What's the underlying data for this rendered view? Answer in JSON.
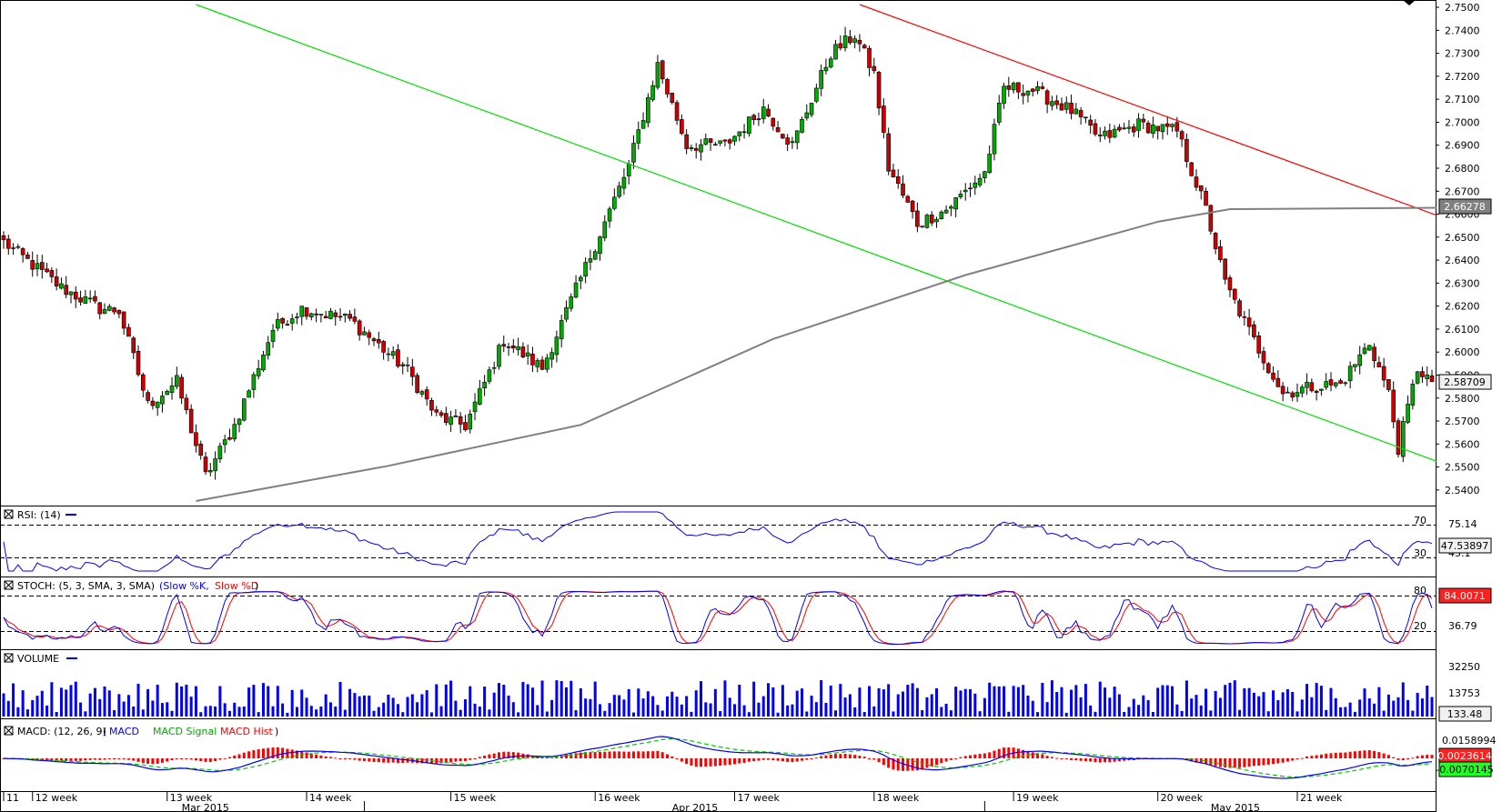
{
  "colors": {
    "bull_candle": "#00aa00",
    "bear_candle": "#cc0000",
    "candle_outline": "#000000",
    "support_line": "#00dd00",
    "resistance_line": "#ff0000",
    "moving_average": "#808080",
    "rsi": "#0000ff",
    "stoch_k": "#0000ff",
    "stoch_d": "#ff0000",
    "volume": "#0000ff",
    "macd": "#0000ff",
    "macd_signal": "#00cc00",
    "macd_hist": "#ff0000",
    "price_box_bg": "#808080",
    "price_box_text": "#ffffff",
    "last_box_bg": "#f0f0f0"
  },
  "chart_data": [
    {
      "type": "candlestick",
      "panel": "price",
      "ylim": [
        2.5352,
        2.7512
      ],
      "y_ticks": [
        "2.5400",
        "2.5500",
        "2.5600",
        "2.5700",
        "2.5800",
        "2.5900",
        "2.6000",
        "2.6100",
        "2.6200",
        "2.6300",
        "2.6400",
        "2.6500",
        "2.6600",
        "2.6700",
        "2.6800",
        "2.6900",
        "2.7000",
        "2.7100",
        "2.7200",
        "2.7300",
        "2.7400",
        "2.7500"
      ],
      "current_price_label": "2.58709",
      "ma_label": "2.66278",
      "candle_stats": {
        "count": 298,
        "start_close": 2.6479,
        "min_close": 2.5582,
        "max_close": 2.7378,
        "end_close": 2.5871
      },
      "lines": [
        {
          "name": "green-support",
          "from": {
            "index": 40,
            "price": 2.7512
          },
          "to": {
            "index": 298,
            "price": 2.5525
          }
        },
        {
          "name": "red-resistance",
          "from": {
            "index": 178,
            "price": 2.7512
          },
          "to": {
            "index": 298,
            "price": 2.6595
          }
        },
        {
          "name": "moving-average",
          "points": [
            [
              40,
              2.5352
            ],
            [
              80,
              2.5505
            ],
            [
              120,
              2.5683
            ],
            [
              160,
              2.6057
            ],
            [
              200,
              2.6335
            ],
            [
              240,
              2.6567
            ],
            [
              255,
              2.6622
            ],
            [
              298,
              2.6628
            ]
          ]
        }
      ]
    },
    {
      "type": "line",
      "panel": "rsi",
      "title": "RSI: (14)",
      "levels": [
        "70",
        "30"
      ],
      "axis_labels": [
        "75.14",
        "45.1"
      ],
      "current_value_label": "47.53897"
    },
    {
      "type": "line",
      "panel": "stoch",
      "title": "STOCH: (5, 3, SMA, 3, SMA)",
      "series_names": [
        "Slow %K",
        "Slow %D"
      ],
      "levels": [
        "80",
        "20"
      ],
      "axis_labels": [
        "36.79"
      ],
      "current_value_label": "84.0071"
    },
    {
      "type": "bar",
      "panel": "volume",
      "title": "VOLUME",
      "axis_labels": [
        "32250",
        "13753"
      ],
      "current_value_label": "133.48"
    },
    {
      "type": "line",
      "panel": "macd",
      "title": "MACD: (12, 26, 9)",
      "series_names": [
        "MACD",
        "MACD Signal",
        "MACD Hist"
      ],
      "axis_labels": [
        "0.0158994"
      ],
      "macd_label": "0.0023614",
      "signal_label": "-0.0070145"
    }
  ],
  "x_axis": {
    "weeks": [
      {
        "label": "11",
        "index": 0
      },
      {
        "label": "12 week",
        "index": 6
      },
      {
        "label": "13 week",
        "index": 34
      },
      {
        "label": "14 week",
        "index": 63
      },
      {
        "label": "15 week",
        "index": 93
      },
      {
        "label": "16 week",
        "index": 123
      },
      {
        "label": "17 week",
        "index": 152
      },
      {
        "label": "18 week",
        "index": 181
      },
      {
        "label": "19 week",
        "index": 210
      },
      {
        "label": "20 week",
        "index": 240
      },
      {
        "label": "21 week",
        "index": 269
      }
    ],
    "months": [
      {
        "label": "Mar 2015",
        "index": 37
      },
      {
        "label": "Apr 2015",
        "index": 139
      },
      {
        "label": "May 2015",
        "index": 251
      }
    ],
    "month_separators": [
      75,
      204
    ]
  }
}
